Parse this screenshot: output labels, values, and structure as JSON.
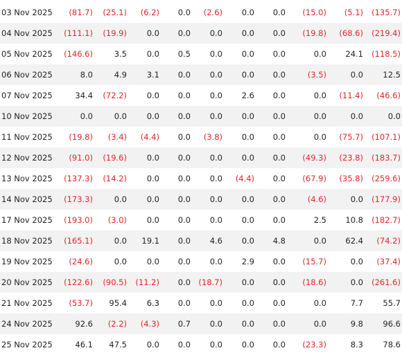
{
  "table": {
    "rows": [
      [
        "03 Nov 2025",
        "(81.7)",
        "(25.1)",
        "(6.2)",
        "0.0",
        "(2.6)",
        "0.0",
        "0.0",
        "(15.0)",
        "(5.1)",
        "(135.7)"
      ],
      [
        "04 Nov 2025",
        "(111.1)",
        "(19.9)",
        "0.0",
        "0.0",
        "0.0",
        "0.0",
        "0.0",
        "(19.8)",
        "(68.6)",
        "(219.4)"
      ],
      [
        "05 Nov 2025",
        "(146.6)",
        "3.5",
        "0.0",
        "0.5",
        "0.0",
        "0.0",
        "0.0",
        "0.0",
        "24.1",
        "(118.5)"
      ],
      [
        "06 Nov 2025",
        "8.0",
        "4.9",
        "3.1",
        "0.0",
        "0.0",
        "0.0",
        "0.0",
        "(3.5)",
        "0.0",
        "12.5"
      ],
      [
        "07 Nov 2025",
        "34.4",
        "(72.2)",
        "0.0",
        "0.0",
        "0.0",
        "2.6",
        "0.0",
        "0.0",
        "(11.4)",
        "(46.6)"
      ],
      [
        "10 Nov 2025",
        "0.0",
        "0.0",
        "0.0",
        "0.0",
        "0.0",
        "0.0",
        "0.0",
        "0.0",
        "0.0",
        "0.0"
      ],
      [
        "11 Nov 2025",
        "(19.8)",
        "(3.4)",
        "(4.4)",
        "0.0",
        "(3.8)",
        "0.0",
        "0.0",
        "0.0",
        "(75.7)",
        "(107.1)"
      ],
      [
        "12 Nov 2025",
        "(91.0)",
        "(19.6)",
        "0.0",
        "0.0",
        "0.0",
        "0.0",
        "0.0",
        "(49.3)",
        "(23.8)",
        "(183.7)"
      ],
      [
        "13 Nov 2025",
        "(137.3)",
        "(14.2)",
        "0.0",
        "0.0",
        "0.0",
        "(4.4)",
        "0.0",
        "(67.9)",
        "(35.8)",
        "(259.6)"
      ],
      [
        "14 Nov 2025",
        "(173.3)",
        "0.0",
        "0.0",
        "0.0",
        "0.0",
        "0.0",
        "0.0",
        "(4.6)",
        "0.0",
        "(177.9)"
      ],
      [
        "17 Nov 2025",
        "(193.0)",
        "(3.0)",
        "0.0",
        "0.0",
        "0.0",
        "0.0",
        "0.0",
        "2.5",
        "10.8",
        "(182.7)"
      ],
      [
        "18 Nov 2025",
        "(165.1)",
        "0.0",
        "19.1",
        "0.0",
        "4.6",
        "0.0",
        "4.8",
        "0.0",
        "62.4",
        "(74.2)"
      ],
      [
        "19 Nov 2025",
        "(24.6)",
        "0.0",
        "0.0",
        "0.0",
        "0.0",
        "2.9",
        "0.0",
        "(15.7)",
        "0.0",
        "(37.4)"
      ],
      [
        "20 Nov 2025",
        "(122.6)",
        "(90.5)",
        "(11.2)",
        "0.0",
        "(18.7)",
        "0.0",
        "0.0",
        "(18.6)",
        "0.0",
        "(261.6)"
      ],
      [
        "21 Nov 2025",
        "(53.7)",
        "95.4",
        "6.3",
        "0.0",
        "0.0",
        "0.0",
        "0.0",
        "0.0",
        "7.7",
        "55.7"
      ],
      [
        "24 Nov 2025",
        "92.6",
        "(2.2)",
        "(4.3)",
        "0.7",
        "0.0",
        "0.0",
        "0.0",
        "0.0",
        "9.8",
        "96.6"
      ],
      [
        "25 Nov 2025",
        "46.1",
        "47.5",
        "0.0",
        "0.0",
        "0.0",
        "0.0",
        "0.0",
        "(23.3)",
        "8.3",
        "78.6"
      ]
    ]
  }
}
